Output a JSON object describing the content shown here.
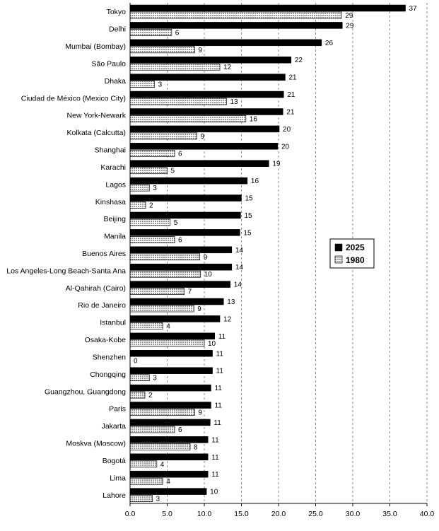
{
  "chart_data": {
    "type": "bar",
    "orientation": "horizontal",
    "categories": [
      "Tokyo",
      "Delhi",
      "Mumbai (Bombay)",
      "São Paulo",
      "Dhaka",
      "Ciudad de México (Mexico City)",
      "New York-Newark",
      "Kolkata (Calcutta)",
      "Shanghai",
      "Karachi",
      "Lagos",
      "Kinshasa",
      "Beijing",
      "Manila",
      "Buenos Aires",
      "Los Angeles-Long Beach-Santa Ana",
      "Al-Qahirah (Cairo)",
      "Rio de Janeiro",
      "Istanbul",
      "Osaka-Kobe",
      "Shenzhen",
      "Chongqing",
      "Guangzhou, Guangdong",
      "Paris",
      "Jakarta",
      "Moskva (Moscow)",
      "Bogotá",
      "Lima",
      "Lahore"
    ],
    "series": [
      {
        "name": "2025",
        "color": "#000000",
        "values": [
          37.1,
          28.6,
          25.8,
          21.7,
          20.9,
          20.7,
          20.6,
          20.1,
          19.9,
          18.7,
          15.8,
          15.0,
          14.9,
          14.8,
          13.7,
          13.7,
          13.5,
          12.6,
          12.1,
          11.4,
          11.1,
          11.1,
          10.9,
          10.9,
          10.8,
          10.5,
          10.5,
          10.5,
          10.3
        ],
        "labels": [
          "37",
          "29",
          "26",
          "22",
          "21",
          "21",
          "21",
          "20",
          "20",
          "19",
          "16",
          "15",
          "15",
          "15",
          "14",
          "14",
          "14",
          "13",
          "12",
          "11",
          "11",
          "11",
          "11",
          "11",
          "11",
          "11",
          "11",
          "11",
          "10"
        ]
      },
      {
        "name": "1980",
        "color": "#c8c8c8",
        "values": [
          28.5,
          5.6,
          8.7,
          12.1,
          3.3,
          13.0,
          15.6,
          9.0,
          6.0,
          5.0,
          2.6,
          2.1,
          5.4,
          6.0,
          9.4,
          9.5,
          7.3,
          8.6,
          4.4,
          10.0,
          0.0,
          2.6,
          2.0,
          8.7,
          6.0,
          8.1,
          3.6,
          4.4,
          3.0
        ],
        "labels": [
          "29",
          "6",
          "9",
          "12",
          "3",
          "13",
          "16",
          "9",
          "6",
          "5",
          "3",
          "2",
          "5",
          "6",
          "9",
          "10",
          "7",
          "9",
          "4",
          "10",
          "0",
          "3",
          "2",
          "9",
          "6",
          "8",
          "4",
          "4",
          "3"
        ]
      }
    ],
    "xlim": [
      0,
      40
    ],
    "xticks": [
      "0.0",
      "5.0",
      "10.0",
      "15.0",
      "20.0",
      "25.0",
      "30.0",
      "35.0",
      "40.0"
    ],
    "grid": "vertical dashed",
    "legend_position": "right"
  }
}
